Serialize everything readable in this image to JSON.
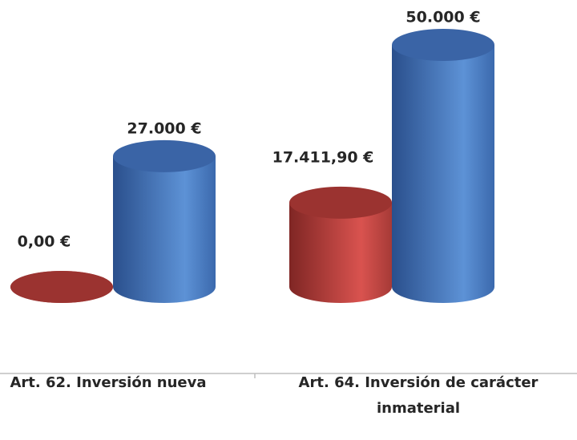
{
  "chart_data": {
    "type": "bar3d",
    "categories": [
      "Art. 62. Inversión nueva",
      "Art. 64. Inversión de carácter inmaterial"
    ],
    "series": [
      {
        "color": "#c0504d",
        "values": [
          0,
          17411.9
        ],
        "value_labels": [
          "0,00 €",
          "17.411,90 €"
        ]
      },
      {
        "color": "#4f81bd",
        "values": [
          27000,
          50000
        ],
        "value_labels": [
          "27.000 €",
          "50.000 €"
        ]
      }
    ],
    "ylim": [
      0,
      50000
    ]
  }
}
